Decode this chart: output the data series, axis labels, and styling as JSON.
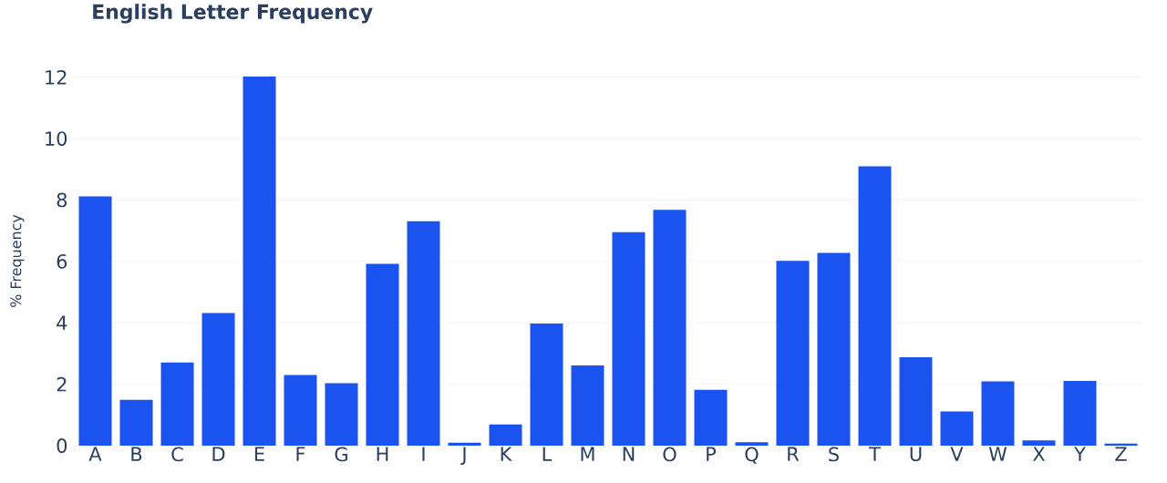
{
  "chart_data": {
    "type": "bar",
    "title": "English Letter Frequency",
    "ylabel": "% Frequency",
    "categories": [
      "A",
      "B",
      "C",
      "D",
      "E",
      "F",
      "G",
      "H",
      "I",
      "J",
      "K",
      "L",
      "M",
      "N",
      "O",
      "P",
      "Q",
      "R",
      "S",
      "T",
      "U",
      "V",
      "W",
      "X",
      "Y",
      "Z"
    ],
    "values": [
      8.12,
      1.49,
      2.71,
      4.32,
      12.02,
      2.3,
      2.03,
      5.92,
      7.31,
      0.1,
      0.69,
      3.98,
      2.61,
      6.95,
      7.68,
      1.82,
      0.11,
      6.02,
      6.28,
      9.1,
      2.88,
      1.11,
      2.09,
      0.17,
      2.11,
      0.07
    ],
    "color": "#1a53f0",
    "ylim": [
      0,
      12.02
    ],
    "yticks": [
      0,
      2,
      4,
      6,
      8,
      10,
      12
    ],
    "grid": "y"
  }
}
